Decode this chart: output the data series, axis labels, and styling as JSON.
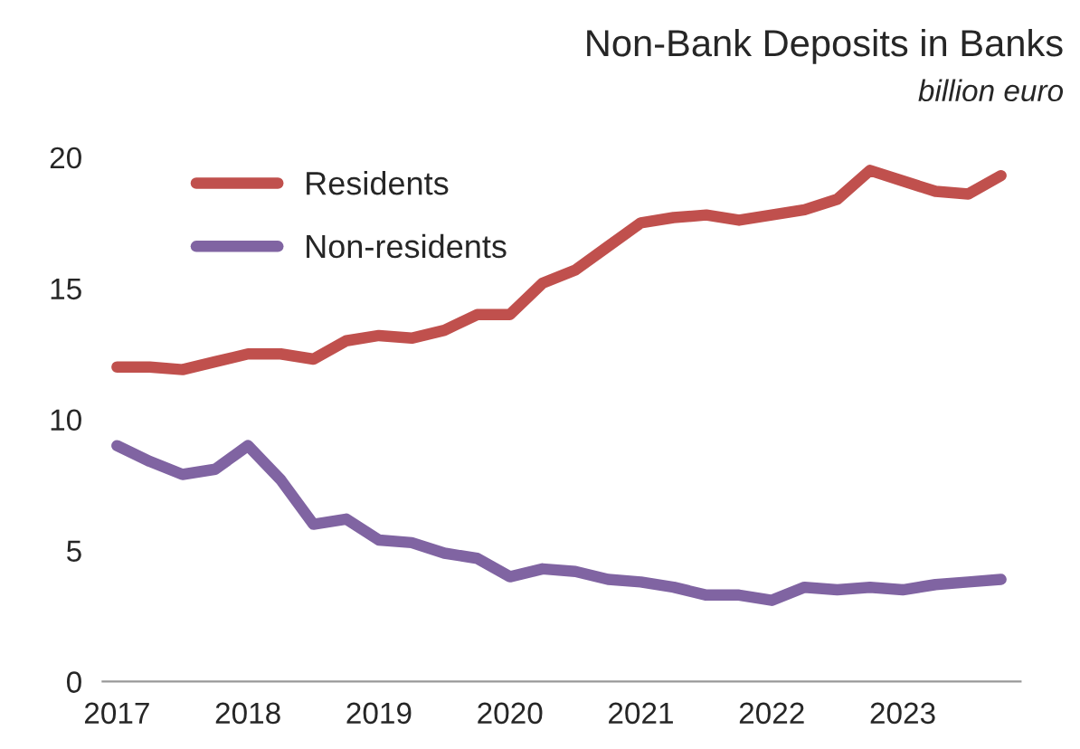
{
  "chart_data": {
    "type": "line",
    "title": "Non-Bank Deposits in Banks",
    "subtitle": "billion euro",
    "x": [
      2017,
      2017.25,
      2017.5,
      2017.75,
      2018,
      2018.25,
      2018.5,
      2018.75,
      2019,
      2019.25,
      2019.5,
      2019.75,
      2020,
      2020.25,
      2020.5,
      2020.75,
      2021,
      2021.25,
      2021.5,
      2021.75,
      2022,
      2022.25,
      2022.5,
      2022.75,
      2023,
      2023.25,
      2023.5,
      2023.75
    ],
    "series": [
      {
        "name": "Residents",
        "color": "#c0504d",
        "values": [
          12.0,
          12.0,
          11.9,
          12.2,
          12.5,
          12.5,
          12.3,
          13.0,
          13.2,
          13.1,
          13.4,
          14.0,
          14.0,
          15.2,
          15.7,
          16.6,
          17.5,
          17.7,
          17.8,
          17.6,
          17.8,
          18.0,
          18.4,
          19.5,
          19.1,
          18.7,
          18.6,
          19.3
        ]
      },
      {
        "name": "Non-residents",
        "color": "#8064a2",
        "values": [
          9.0,
          8.4,
          7.9,
          8.1,
          9.0,
          7.7,
          6.0,
          6.2,
          5.4,
          5.3,
          4.9,
          4.7,
          4.0,
          4.3,
          4.2,
          3.9,
          3.8,
          3.6,
          3.3,
          3.3,
          3.1,
          3.6,
          3.5,
          3.6,
          3.5,
          3.7,
          3.8,
          3.9
        ]
      }
    ],
    "xlim": [
      2016.89,
      2023.9
    ],
    "xticks": [
      2017,
      2018,
      2019,
      2020,
      2021,
      2022,
      2023
    ],
    "ylim": [
      0,
      20
    ],
    "yticks": [
      0,
      5,
      10,
      15,
      20
    ],
    "grid": false,
    "legend": "top left",
    "marker": "none",
    "line_style": "solid"
  }
}
